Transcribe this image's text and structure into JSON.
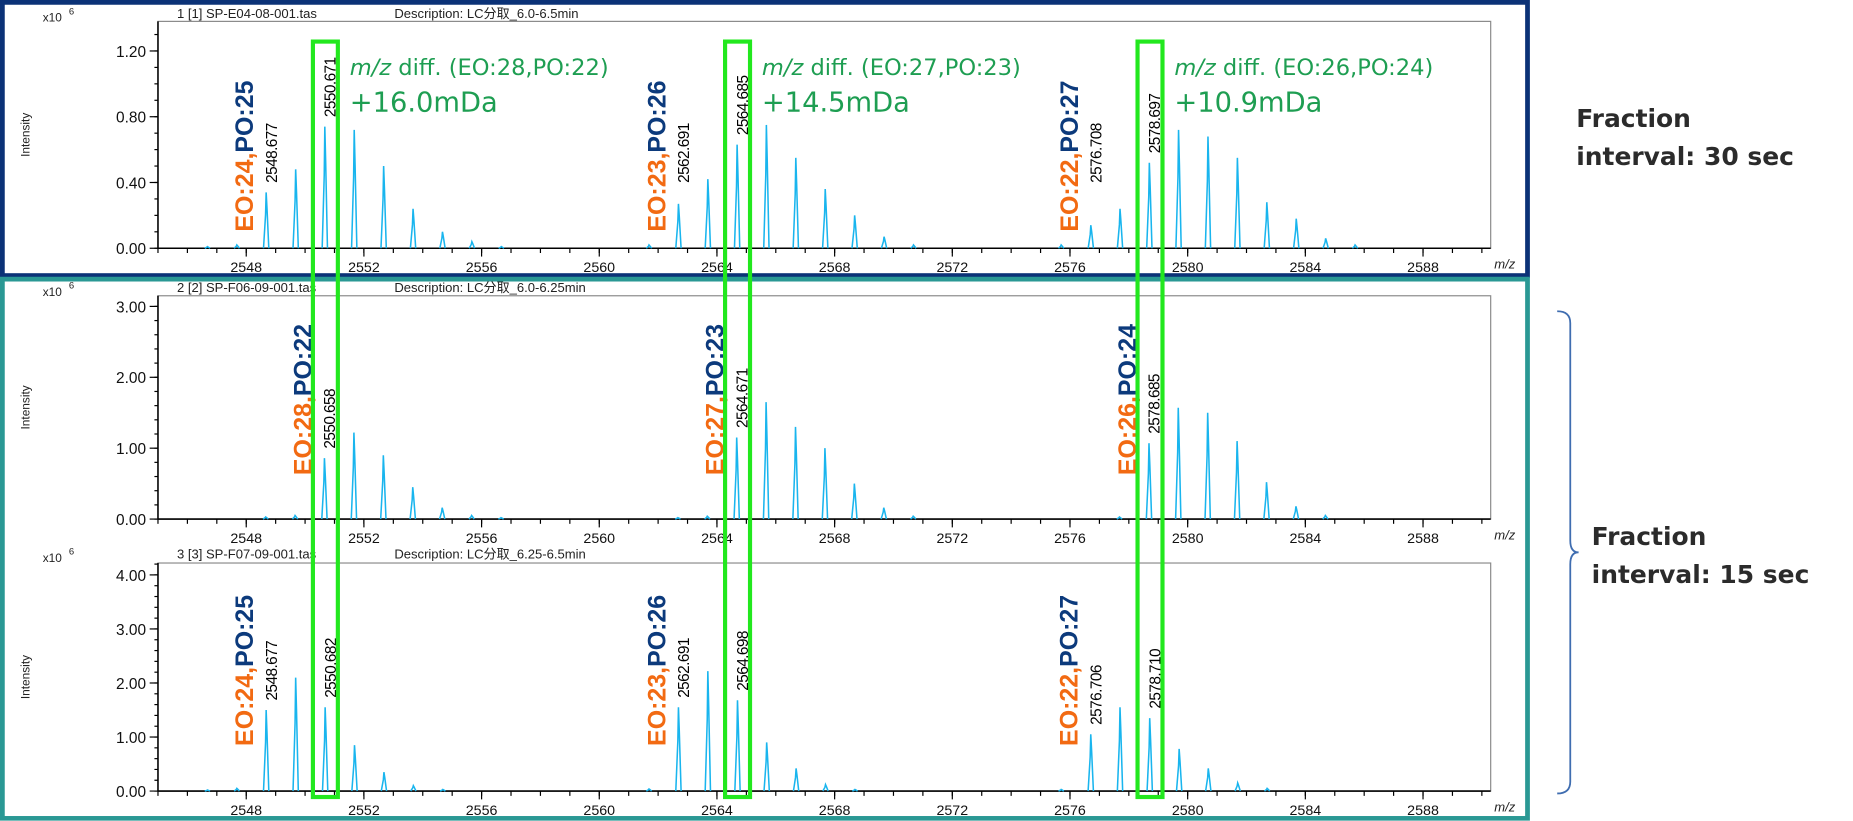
{
  "colors": {
    "spectrum": "#19b5ee",
    "eo_label": "#f26a12",
    "po_label": "#0c3a7c",
    "highlight_box": "#22e81e",
    "diff_note": "#1e9e52",
    "panel1_border": "#0b3277",
    "panel23_border": "#2a9894",
    "bracket": "#3f6db0"
  },
  "side_labels": [
    {
      "line1": "Fraction",
      "line2": "interval: 30 sec"
    },
    {
      "line1": "Fraction",
      "line2": "interval: 15 sec"
    }
  ],
  "diff_notes": [
    {
      "prefix": "m/z",
      "text": " diff. (EO:28,PO:22)",
      "value": "+16.0mDa"
    },
    {
      "prefix": "m/z",
      "text": " diff. (EO:27,PO:23)",
      "value": "+14.5mDa"
    },
    {
      "prefix": "m/z",
      "text": " diff. (EO:26,PO:24)",
      "value": "+10.9mDa"
    }
  ],
  "highlighted_mz": [
    2550.67,
    2564.68,
    2578.7
  ],
  "chart_data": [
    {
      "type": "line",
      "title": "1 [1] SP-E04-08-001.tas",
      "description": "Description: LC分取_6.0-6.5min",
      "ylabel": "Intensity",
      "xlabel": "m/z",
      "y_multiplier": "x10",
      "y_multiplier_exp": "6",
      "xlim": [
        2545.0,
        2590.3
      ],
      "ylim": [
        0,
        1.38
      ],
      "xticks": [
        2548,
        2552,
        2556,
        2560,
        2564,
        2568,
        2572,
        2576,
        2580,
        2584,
        2588
      ],
      "yticks": [
        0,
        0.4,
        0.8,
        1.2
      ],
      "ytick_labels": [
        "0.00",
        "0.40",
        "0.80",
        "1.20"
      ],
      "y_minor_step": 0.1,
      "peaks": [
        [
          2546.68,
          0.01
        ],
        [
          2547.68,
          0.02
        ],
        [
          2548.677,
          0.34
        ],
        [
          2549.68,
          0.48
        ],
        [
          2550.671,
          0.74
        ],
        [
          2551.67,
          0.72
        ],
        [
          2552.67,
          0.5
        ],
        [
          2553.67,
          0.24
        ],
        [
          2554.67,
          0.1
        ],
        [
          2555.67,
          0.04
        ],
        [
          2556.67,
          0.01
        ],
        [
          2561.69,
          0.02
        ],
        [
          2562.691,
          0.27
        ],
        [
          2563.69,
          0.42
        ],
        [
          2564.685,
          0.63
        ],
        [
          2565.68,
          0.75
        ],
        [
          2566.68,
          0.55
        ],
        [
          2567.68,
          0.36
        ],
        [
          2568.68,
          0.2
        ],
        [
          2569.68,
          0.07
        ],
        [
          2570.68,
          0.02
        ],
        [
          2575.7,
          0.02
        ],
        [
          2576.708,
          0.14
        ],
        [
          2577.7,
          0.24
        ],
        [
          2578.697,
          0.52
        ],
        [
          2579.69,
          0.72
        ],
        [
          2580.69,
          0.68
        ],
        [
          2581.69,
          0.55
        ],
        [
          2582.69,
          0.28
        ],
        [
          2583.69,
          0.18
        ],
        [
          2584.69,
          0.06
        ],
        [
          2585.69,
          0.02
        ]
      ],
      "peak_labels": [
        {
          "mz": 2548.677,
          "label": "2548.677"
        },
        {
          "mz": 2550.671,
          "label": "2550.671"
        },
        {
          "mz": 2562.691,
          "label": "2562.691"
        },
        {
          "mz": 2564.685,
          "label": "2564.685"
        },
        {
          "mz": 2576.708,
          "label": "2576.708"
        },
        {
          "mz": 2578.697,
          "label": "2578.697"
        }
      ],
      "annotations": [
        {
          "mz": 2548.677,
          "eo": "EO:24",
          "sep": ",",
          "po": "PO:25"
        },
        {
          "mz": 2562.691,
          "eo": "EO:23",
          "sep": ",",
          "po": "PO:26"
        },
        {
          "mz": 2576.708,
          "eo": "EO:22",
          "sep": ",",
          "po": "PO:27"
        }
      ]
    },
    {
      "type": "line",
      "title": "2 [2] SP-F06-09-001.tas",
      "description": "Description: LC分取_6.0-6.25min",
      "ylabel": "Intensity",
      "xlabel": "m/z",
      "y_multiplier": "x10",
      "y_multiplier_exp": "6",
      "xlim": [
        2545.0,
        2590.3
      ],
      "ylim": [
        0,
        3.15
      ],
      "xticks": [
        2548,
        2552,
        2556,
        2560,
        2564,
        2568,
        2572,
        2576,
        2580,
        2584,
        2588
      ],
      "yticks": [
        0,
        1,
        2,
        3
      ],
      "ytick_labels": [
        "0.00",
        "1.00",
        "2.00",
        "3.00"
      ],
      "y_minor_step": 0.2,
      "peaks": [
        [
          2548.66,
          0.03
        ],
        [
          2549.66,
          0.05
        ],
        [
          2550.658,
          0.86
        ],
        [
          2551.66,
          1.22
        ],
        [
          2552.66,
          0.9
        ],
        [
          2553.66,
          0.45
        ],
        [
          2554.66,
          0.16
        ],
        [
          2555.66,
          0.05
        ],
        [
          2556.66,
          0.02
        ],
        [
          2562.67,
          0.02
        ],
        [
          2563.67,
          0.04
        ],
        [
          2564.671,
          1.15
        ],
        [
          2565.67,
          1.65
        ],
        [
          2566.67,
          1.3
        ],
        [
          2567.67,
          1.0
        ],
        [
          2568.67,
          0.5
        ],
        [
          2569.67,
          0.16
        ],
        [
          2570.67,
          0.04
        ],
        [
          2577.68,
          0.03
        ],
        [
          2578.685,
          1.07
        ],
        [
          2579.68,
          1.57
        ],
        [
          2580.68,
          1.5
        ],
        [
          2581.68,
          1.1
        ],
        [
          2582.68,
          0.52
        ],
        [
          2583.68,
          0.18
        ],
        [
          2584.68,
          0.05
        ]
      ],
      "peak_labels": [
        {
          "mz": 2550.658,
          "label": "2550.658"
        },
        {
          "mz": 2564.671,
          "label": "2564.671"
        },
        {
          "mz": 2578.685,
          "label": "2578.685"
        }
      ],
      "annotations": [
        {
          "mz": 2550.658,
          "eo": "EO:28",
          "sep": ",",
          "po": "PO:22"
        },
        {
          "mz": 2564.671,
          "eo": "EO:27",
          "sep": ",",
          "po": "PO:23"
        },
        {
          "mz": 2578.685,
          "eo": "EO:26",
          "sep": ",",
          "po": "PO:24"
        }
      ]
    },
    {
      "type": "line",
      "title": "3 [3] SP-F07-09-001.tas",
      "description": "Description: LC分取_6.25-6.5min",
      "ylabel": "Intensity",
      "xlabel": "m/z",
      "y_multiplier": "x10",
      "y_multiplier_exp": "6",
      "xlim": [
        2545.0,
        2590.3
      ],
      "ylim": [
        0,
        4.22
      ],
      "xticks": [
        2548,
        2552,
        2556,
        2560,
        2564,
        2568,
        2572,
        2576,
        2580,
        2584,
        2588
      ],
      "yticks": [
        0,
        1,
        2,
        3,
        4
      ],
      "ytick_labels": [
        "0.00",
        "1.00",
        "2.00",
        "3.00",
        "4.00"
      ],
      "y_minor_step": 0.2,
      "peaks": [
        [
          2546.68,
          0.02
        ],
        [
          2547.68,
          0.05
        ],
        [
          2548.677,
          1.5
        ],
        [
          2549.68,
          2.1
        ],
        [
          2550.682,
          1.55
        ],
        [
          2551.68,
          0.85
        ],
        [
          2552.68,
          0.35
        ],
        [
          2553.68,
          0.1
        ],
        [
          2554.68,
          0.03
        ],
        [
          2561.69,
          0.04
        ],
        [
          2562.691,
          1.55
        ],
        [
          2563.69,
          2.22
        ],
        [
          2564.698,
          1.68
        ],
        [
          2565.69,
          0.9
        ],
        [
          2566.69,
          0.42
        ],
        [
          2567.69,
          0.12
        ],
        [
          2568.69,
          0.03
        ],
        [
          2575.7,
          0.03
        ],
        [
          2576.706,
          1.05
        ],
        [
          2577.7,
          1.55
        ],
        [
          2578.71,
          1.35
        ],
        [
          2579.71,
          0.78
        ],
        [
          2580.7,
          0.42
        ],
        [
          2581.7,
          0.15
        ],
        [
          2582.7,
          0.05
        ]
      ],
      "peak_labels": [
        {
          "mz": 2548.677,
          "label": "2548.677"
        },
        {
          "mz": 2550.682,
          "label": "2550.682"
        },
        {
          "mz": 2562.691,
          "label": "2562.691"
        },
        {
          "mz": 2564.698,
          "label": "2564.698"
        },
        {
          "mz": 2576.706,
          "label": "2576.706"
        },
        {
          "mz": 2578.71,
          "label": "2578.710"
        }
      ],
      "annotations": [
        {
          "mz": 2548.677,
          "eo": "EO:24",
          "sep": ",",
          "po": "PO:25"
        },
        {
          "mz": 2562.691,
          "eo": "EO:23",
          "sep": ",",
          "po": "PO:26"
        },
        {
          "mz": 2576.706,
          "eo": "EO:22",
          "sep": ",",
          "po": "PO:27"
        }
      ]
    }
  ]
}
